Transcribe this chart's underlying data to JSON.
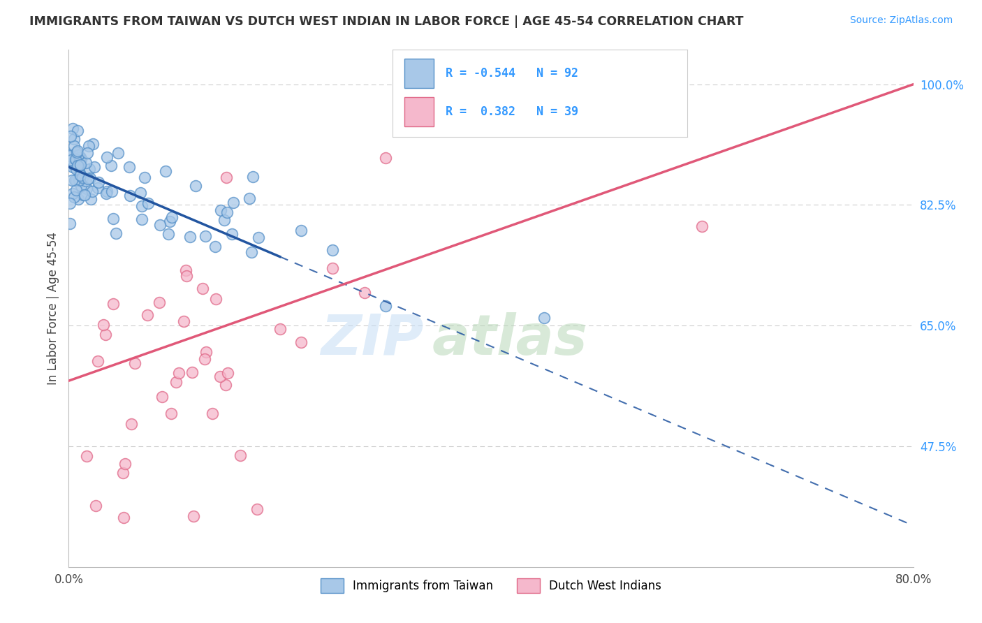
{
  "title": "IMMIGRANTS FROM TAIWAN VS DUTCH WEST INDIAN IN LABOR FORCE | AGE 45-54 CORRELATION CHART",
  "source": "Source: ZipAtlas.com",
  "ylabel": "In Labor Force | Age 45-54",
  "xlim": [
    0.0,
    80.0
  ],
  "ylim": [
    30.0,
    105.0
  ],
  "yticks_right": [
    47.5,
    65.0,
    82.5,
    100.0
  ],
  "yticklabels_right": [
    "47.5%",
    "65.0%",
    "82.5%",
    "100.0%"
  ],
  "grid_color": "#cccccc",
  "background_color": "#ffffff",
  "taiwan_color": "#a8c8e8",
  "taiwan_edge_color": "#5590c8",
  "dutch_color": "#f5b8cc",
  "dutch_edge_color": "#e06888",
  "taiwan_R": -0.544,
  "taiwan_N": 92,
  "dutch_R": 0.382,
  "dutch_N": 39,
  "taiwan_line_color": "#2255a0",
  "dutch_line_color": "#e05878",
  "watermark_zip": "ZIP",
  "watermark_atlas": "atlas",
  "watermark_zip_color": "#c5ddf5",
  "watermark_atlas_color": "#b8d8b8",
  "legend_taiwan_label": "Immigrants from Taiwan",
  "legend_dutch_label": "Dutch West Indians",
  "legend_text_color": "#3399ff",
  "title_color": "#333333",
  "source_color": "#3399ff"
}
